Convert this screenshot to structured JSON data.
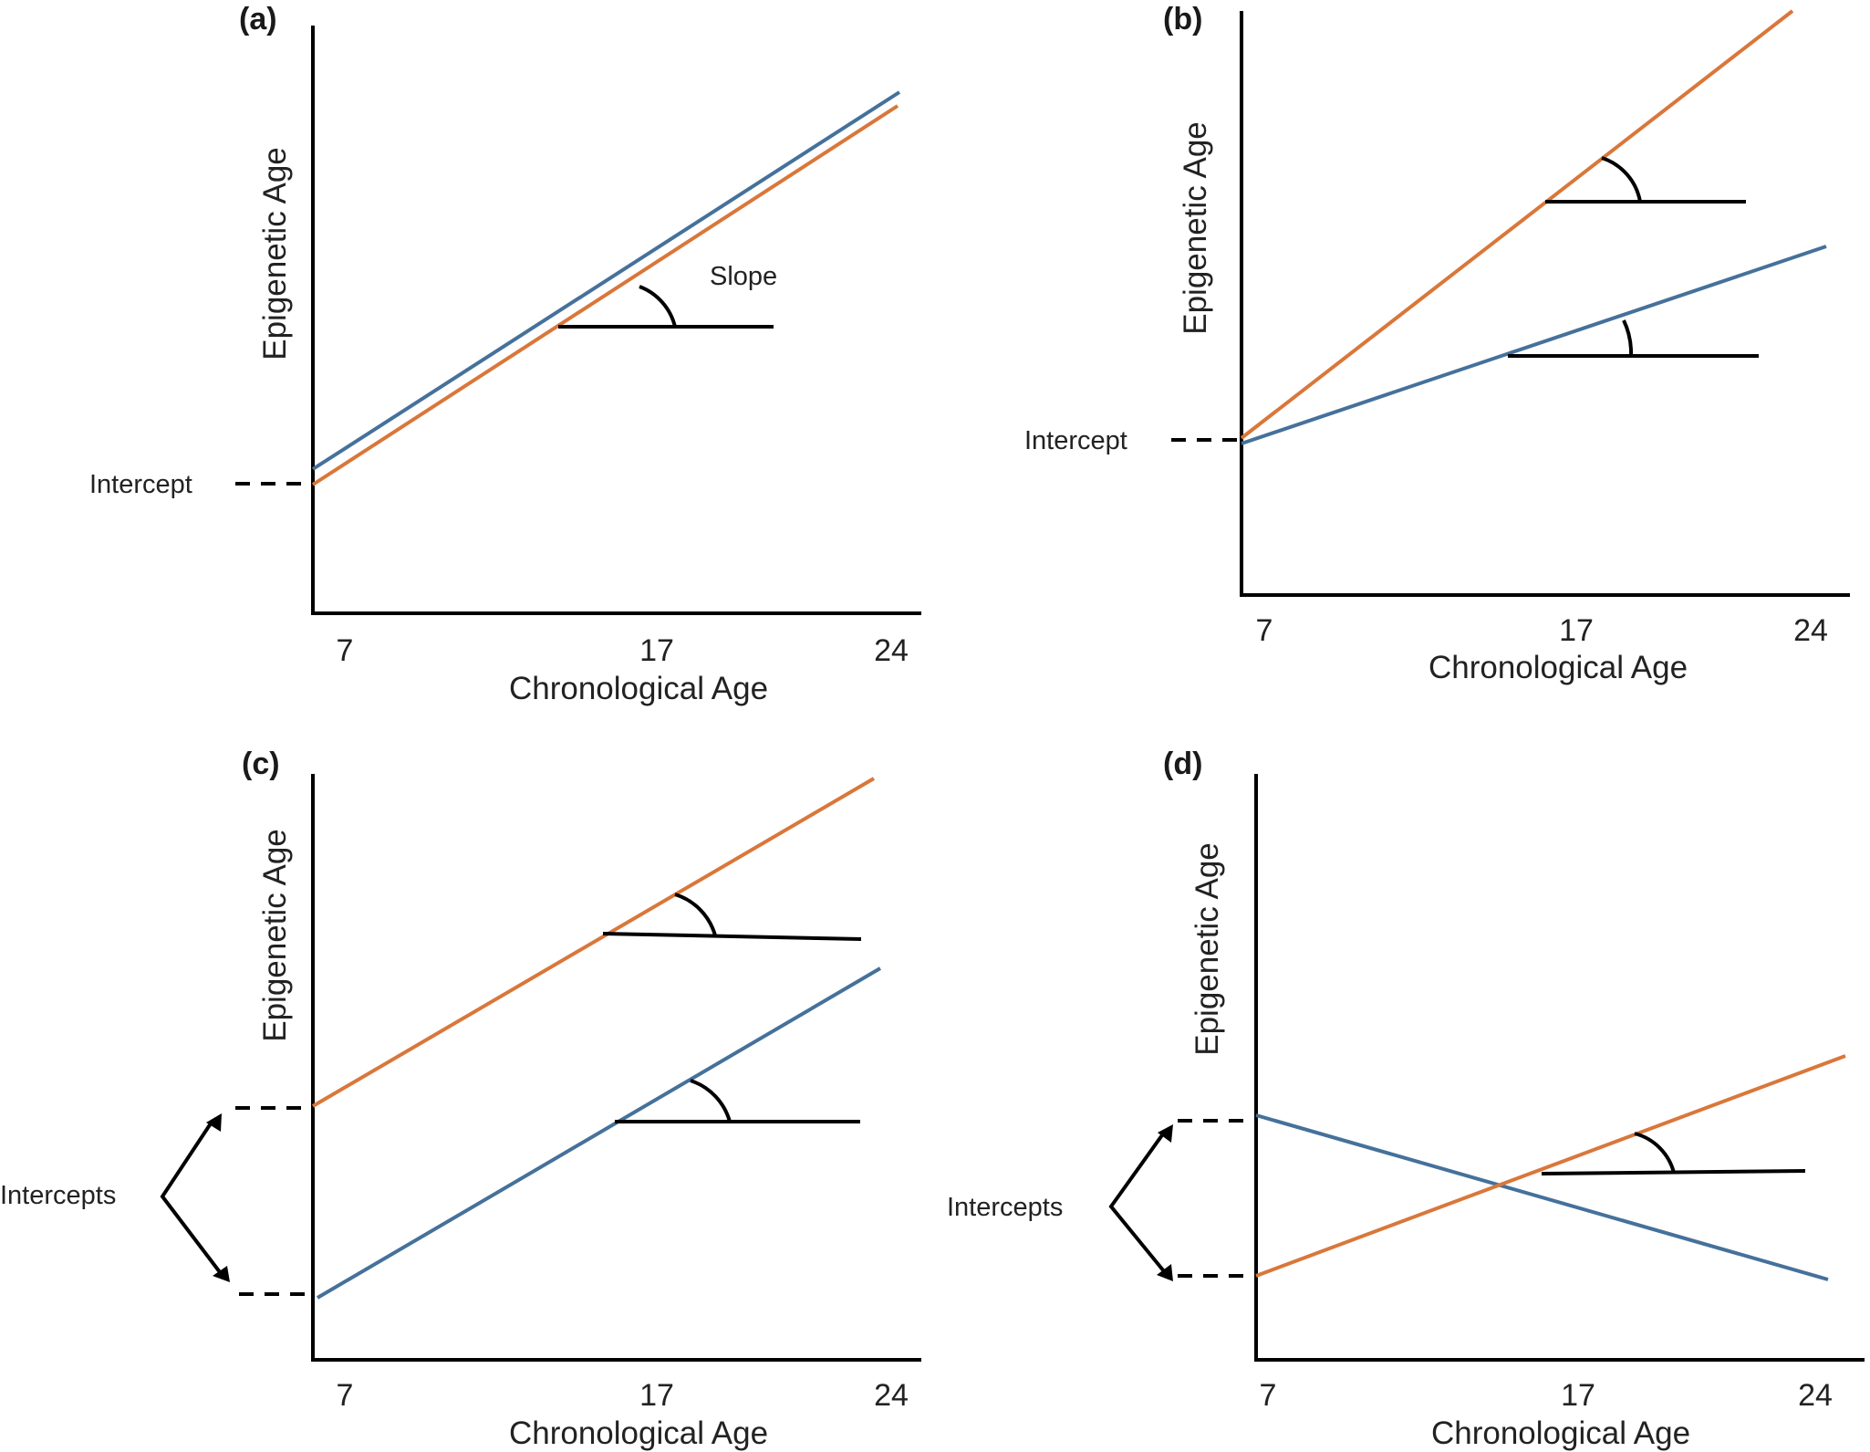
{
  "figure": {
    "axis_titles": {
      "x": "Chronological Age",
      "y": "Epigenetic Age"
    },
    "x_ticks": [
      "7",
      "17",
      "24"
    ],
    "colors": {
      "orange": "#D9773A",
      "blue": "#45719B"
    },
    "panels": {
      "a": {
        "label": "(a)",
        "annotation": "Intercept",
        "slope_label": "Slope"
      },
      "b": {
        "label": "(b)",
        "annotation": "Intercept"
      },
      "c": {
        "label": "(c)",
        "annotation": "Intercepts"
      },
      "d": {
        "label": "(d)",
        "annotation": "Intercepts"
      }
    }
  }
}
